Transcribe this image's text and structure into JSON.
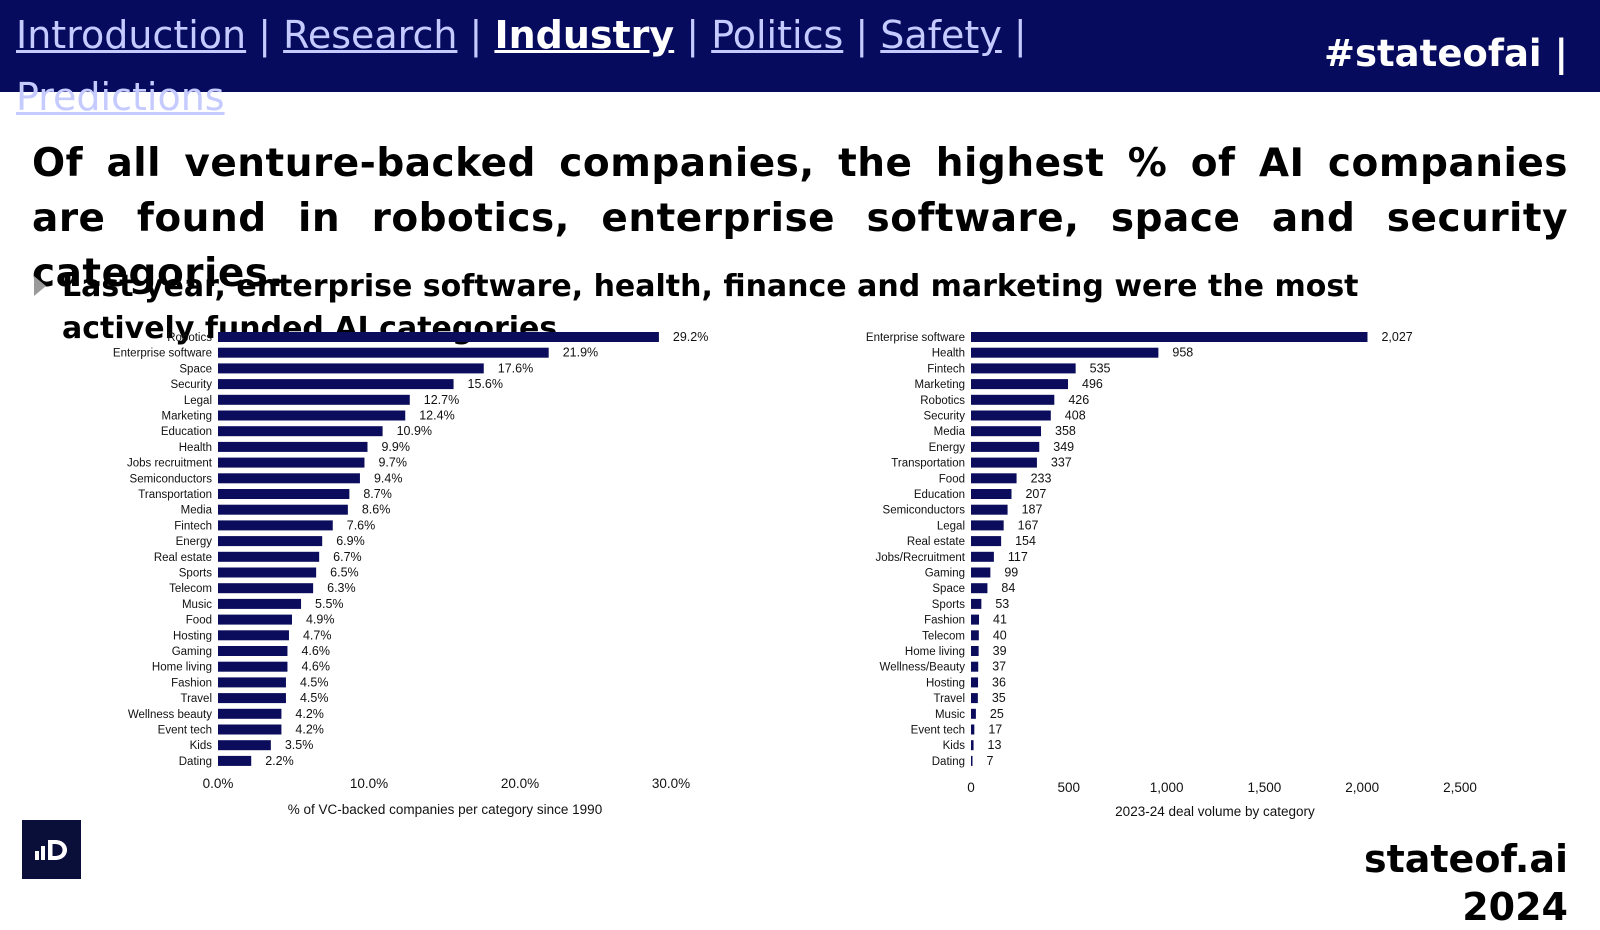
{
  "nav": {
    "items": [
      {
        "label": "Introduction",
        "active": false
      },
      {
        "label": "Research",
        "active": false
      },
      {
        "label": "Industry",
        "active": true
      },
      {
        "label": "Politics",
        "active": false
      },
      {
        "label": "Safety",
        "active": false
      },
      {
        "label": "Predictions",
        "active": false
      }
    ],
    "separator": "|",
    "hashtag": "#stateofai |"
  },
  "headline": "Of all venture-backed companies, the highest % of AI companies are found in robotics, enterprise software, space and security categories.",
  "bullet": "Last year, enterprise software, health, finance and marketing were the most actively funded AI categories.",
  "footer": {
    "site": "stateof.ai",
    "year": "2024"
  },
  "logo": {
    "icon": "dealroom-logo-icon"
  },
  "colors": {
    "bar": "#0b0d5c",
    "topbar": "#060b5e",
    "nav_link": "#c5cbff"
  },
  "chart_data": [
    {
      "type": "bar",
      "orientation": "horizontal",
      "categories": [
        "Robotics",
        "Enterprise software",
        "Space",
        "Security",
        "Legal",
        "Marketing",
        "Education",
        "Health",
        "Jobs recruitment",
        "Semiconductors",
        "Transportation",
        "Media",
        "Fintech",
        "Energy",
        "Real estate",
        "Sports",
        "Telecom",
        "Music",
        "Food",
        "Hosting",
        "Gaming",
        "Home living",
        "Fashion",
        "Travel",
        "Wellness beauty",
        "Event tech",
        "Kids",
        "Dating"
      ],
      "values": [
        29.2,
        21.9,
        17.6,
        15.6,
        12.7,
        12.4,
        10.9,
        9.9,
        9.7,
        9.4,
        8.7,
        8.6,
        7.6,
        6.9,
        6.7,
        6.5,
        6.3,
        5.5,
        4.9,
        4.7,
        4.6,
        4.6,
        4.5,
        4.5,
        4.2,
        4.2,
        3.5,
        2.2
      ],
      "value_labels": [
        "29.2%",
        "21.9%",
        "17.6%",
        "15.6%",
        "12.7%",
        "12.4%",
        "10.9%",
        "9.9%",
        "9.7%",
        "9.4%",
        "8.7%",
        "8.6%",
        "7.6%",
        "6.9%",
        "6.7%",
        "6.5%",
        "6.3%",
        "5.5%",
        "4.9%",
        "4.7%",
        "4.6%",
        "4.6%",
        "4.5%",
        "4.5%",
        "4.2%",
        "4.2%",
        "3.5%",
        "2.2%"
      ],
      "xlim": [
        0,
        30
      ],
      "xticks": [
        0,
        10,
        20,
        30
      ],
      "xtick_labels": [
        "0.0%",
        "10.0%",
        "20.0%",
        "30.0%"
      ],
      "xlabel": "% of VC-backed companies per category since 1990",
      "grid": false
    },
    {
      "type": "bar",
      "orientation": "horizontal",
      "categories": [
        "Enterprise software",
        "Health",
        "Fintech",
        "Marketing",
        "Robotics",
        "Security",
        "Media",
        "Energy",
        "Transportation",
        "Food",
        "Education",
        "Semiconductors",
        "Legal",
        "Real estate",
        "Jobs/Recruitment",
        "Gaming",
        "Space",
        "Sports",
        "Fashion",
        "Telecom",
        "Home living",
        "Wellness/Beauty",
        "Hosting",
        "Travel",
        "Music",
        "Event tech",
        "Kids",
        "Dating"
      ],
      "values": [
        2027,
        958,
        535,
        496,
        426,
        408,
        358,
        349,
        337,
        233,
        207,
        187,
        167,
        154,
        117,
        99,
        84,
        53,
        41,
        40,
        39,
        37,
        36,
        35,
        25,
        17,
        13,
        7
      ],
      "value_labels": [
        "2,027",
        "958",
        "535",
        "496",
        "426",
        "408",
        "358",
        "349",
        "337",
        "233",
        "207",
        "187",
        "167",
        "154",
        "117",
        "99",
        "84",
        "53",
        "41",
        "40",
        "39",
        "37",
        "36",
        "35",
        "25",
        "17",
        "13",
        "7"
      ],
      "xlim": [
        0,
        2500
      ],
      "xticks": [
        0,
        500,
        1000,
        1500,
        2000,
        2500
      ],
      "xtick_labels": [
        "0",
        "500",
        "1,000",
        "1,500",
        "2,000",
        "2,500"
      ],
      "xlabel": "2023-24 deal volume by category",
      "grid": false
    }
  ]
}
